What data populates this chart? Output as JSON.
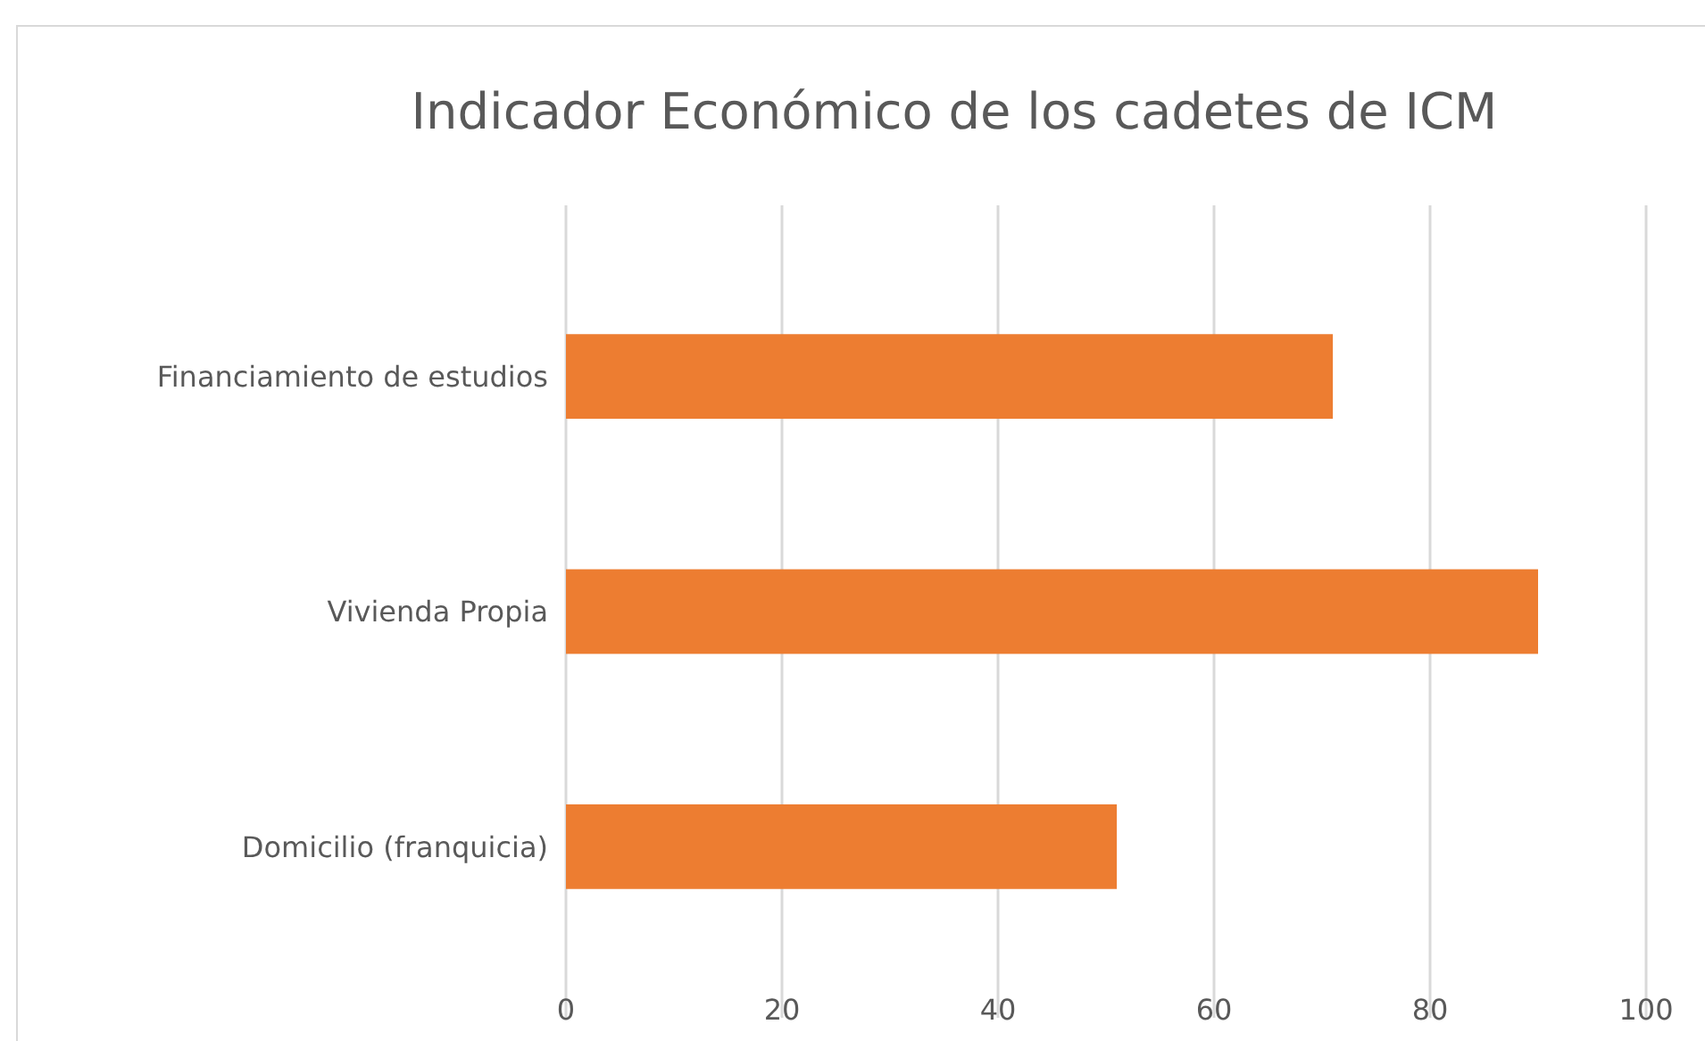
{
  "chart_data": {
    "type": "bar",
    "title": "Indicador Económico de los cadetes de ICM",
    "orientation": "horizontal",
    "categories": [
      "Financiamiento de estudios",
      "Vivienda Propia",
      "Domicilio (franquicia)"
    ],
    "values": [
      71,
      90,
      51
    ],
    "color": "#ed7d31",
    "xlim": [
      0,
      100
    ],
    "xticks": [
      0,
      20,
      40,
      60,
      80,
      100
    ],
    "grid": "x"
  }
}
